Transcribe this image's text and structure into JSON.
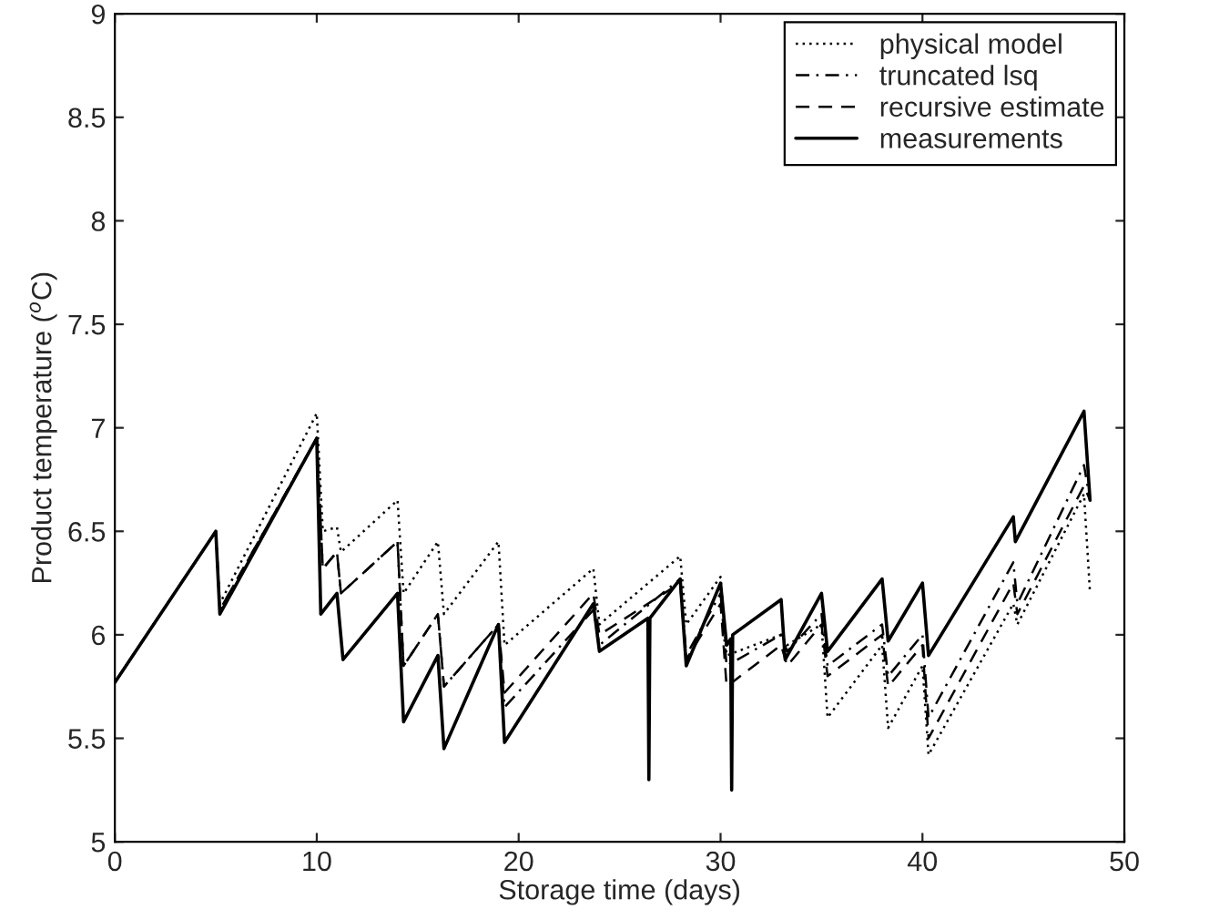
{
  "chart_data": {
    "type": "line",
    "xlabel": "Storage time (days)",
    "ylabel": "Product temperature ($^{o}$C)",
    "xlim": [
      0,
      50
    ],
    "ylim": [
      5,
      9
    ],
    "xticks": [
      0,
      10,
      20,
      30,
      40,
      50
    ],
    "yticks": [
      5,
      5.5,
      6,
      6.5,
      7,
      7.5,
      8,
      8.5,
      9
    ],
    "grid": false,
    "legend": "top right",
    "marker": "none",
    "series": [
      {
        "name": "physical model",
        "color": "#000000",
        "line_style": "dotted",
        "x": [
          0,
          5,
          5.2,
          10,
          10.3,
          11,
          11.2,
          14,
          14.3,
          16,
          16.3,
          19,
          19.3,
          23.7,
          24,
          28,
          28.3,
          30,
          30.3,
          33,
          33.3,
          35,
          35.3,
          38,
          38.3,
          40,
          40.3,
          44.5,
          44.7,
          48,
          48.3
        ],
        "values": [
          5.77,
          6.5,
          6.15,
          7.07,
          6.5,
          6.52,
          6.4,
          6.65,
          6.2,
          6.45,
          6.1,
          6.45,
          5.95,
          6.32,
          6.05,
          6.38,
          6.05,
          6.28,
          5.9,
          6.0,
          5.95,
          6.05,
          5.6,
          5.95,
          5.55,
          5.85,
          5.42,
          6.15,
          6.05,
          6.68,
          6.2
        ]
      },
      {
        "name": "truncated lsq",
        "color": "#000000",
        "line_style": "dashdot",
        "x": [
          0,
          5,
          5.2,
          10,
          10.3,
          11,
          11.2,
          14,
          14.3,
          16,
          16.3,
          19,
          19.3,
          23.7,
          24,
          28,
          28.3,
          30,
          30.3,
          33,
          33.3,
          35,
          35.3,
          38,
          38.3,
          40,
          40.3,
          44.5,
          44.7,
          48,
          48.3
        ],
        "values": [
          5.77,
          6.5,
          6.12,
          6.95,
          6.32,
          6.4,
          6.2,
          6.45,
          5.85,
          6.1,
          5.75,
          6.05,
          5.65,
          6.12,
          5.95,
          6.27,
          5.9,
          6.2,
          5.85,
          6.0,
          5.92,
          6.1,
          5.85,
          6.05,
          5.8,
          6.0,
          5.6,
          6.35,
          6.15,
          6.82,
          6.65
        ]
      },
      {
        "name": "recursive estimate",
        "color": "#000000",
        "line_style": "dashed",
        "x": [
          0,
          5,
          5.2,
          10,
          10.3,
          11,
          11.2,
          14,
          14.3,
          16,
          16.3,
          19,
          19.3,
          23.7,
          24,
          28,
          28.3,
          30,
          30.3,
          33,
          33.3,
          35,
          35.3,
          38,
          38.3,
          40,
          40.3,
          44.5,
          44.7,
          48,
          48.3
        ],
        "values": [
          5.77,
          6.5,
          6.12,
          6.95,
          6.32,
          6.4,
          6.2,
          6.45,
          5.85,
          6.1,
          5.75,
          6.05,
          5.72,
          6.2,
          6.0,
          6.25,
          5.88,
          6.15,
          5.75,
          5.95,
          5.85,
          6.05,
          5.8,
          6.0,
          5.75,
          5.95,
          5.5,
          6.25,
          6.1,
          6.72,
          6.65
        ]
      },
      {
        "name": "measurements",
        "color": "#000000",
        "line_style": "solid",
        "x": [
          0,
          5,
          5.2,
          10,
          10.2,
          11,
          11.3,
          14,
          14.3,
          16,
          16.3,
          19,
          19.3,
          23.7,
          24,
          26.4,
          26.45,
          26.5,
          28,
          28.3,
          30,
          30.3,
          30.5,
          30.55,
          30.6,
          33,
          33.2,
          35,
          35.3,
          38,
          38.3,
          40,
          40.3,
          44.5,
          44.6,
          48,
          48.3
        ],
        "values": [
          5.77,
          6.5,
          6.1,
          6.95,
          6.1,
          6.2,
          5.88,
          6.2,
          5.58,
          5.9,
          5.45,
          6.05,
          5.48,
          6.15,
          5.92,
          6.08,
          5.3,
          6.08,
          6.27,
          5.85,
          6.25,
          5.95,
          5.98,
          5.25,
          6.0,
          6.17,
          5.88,
          6.2,
          5.92,
          6.27,
          5.97,
          6.25,
          5.9,
          6.57,
          6.45,
          7.08,
          6.65
        ]
      }
    ]
  }
}
